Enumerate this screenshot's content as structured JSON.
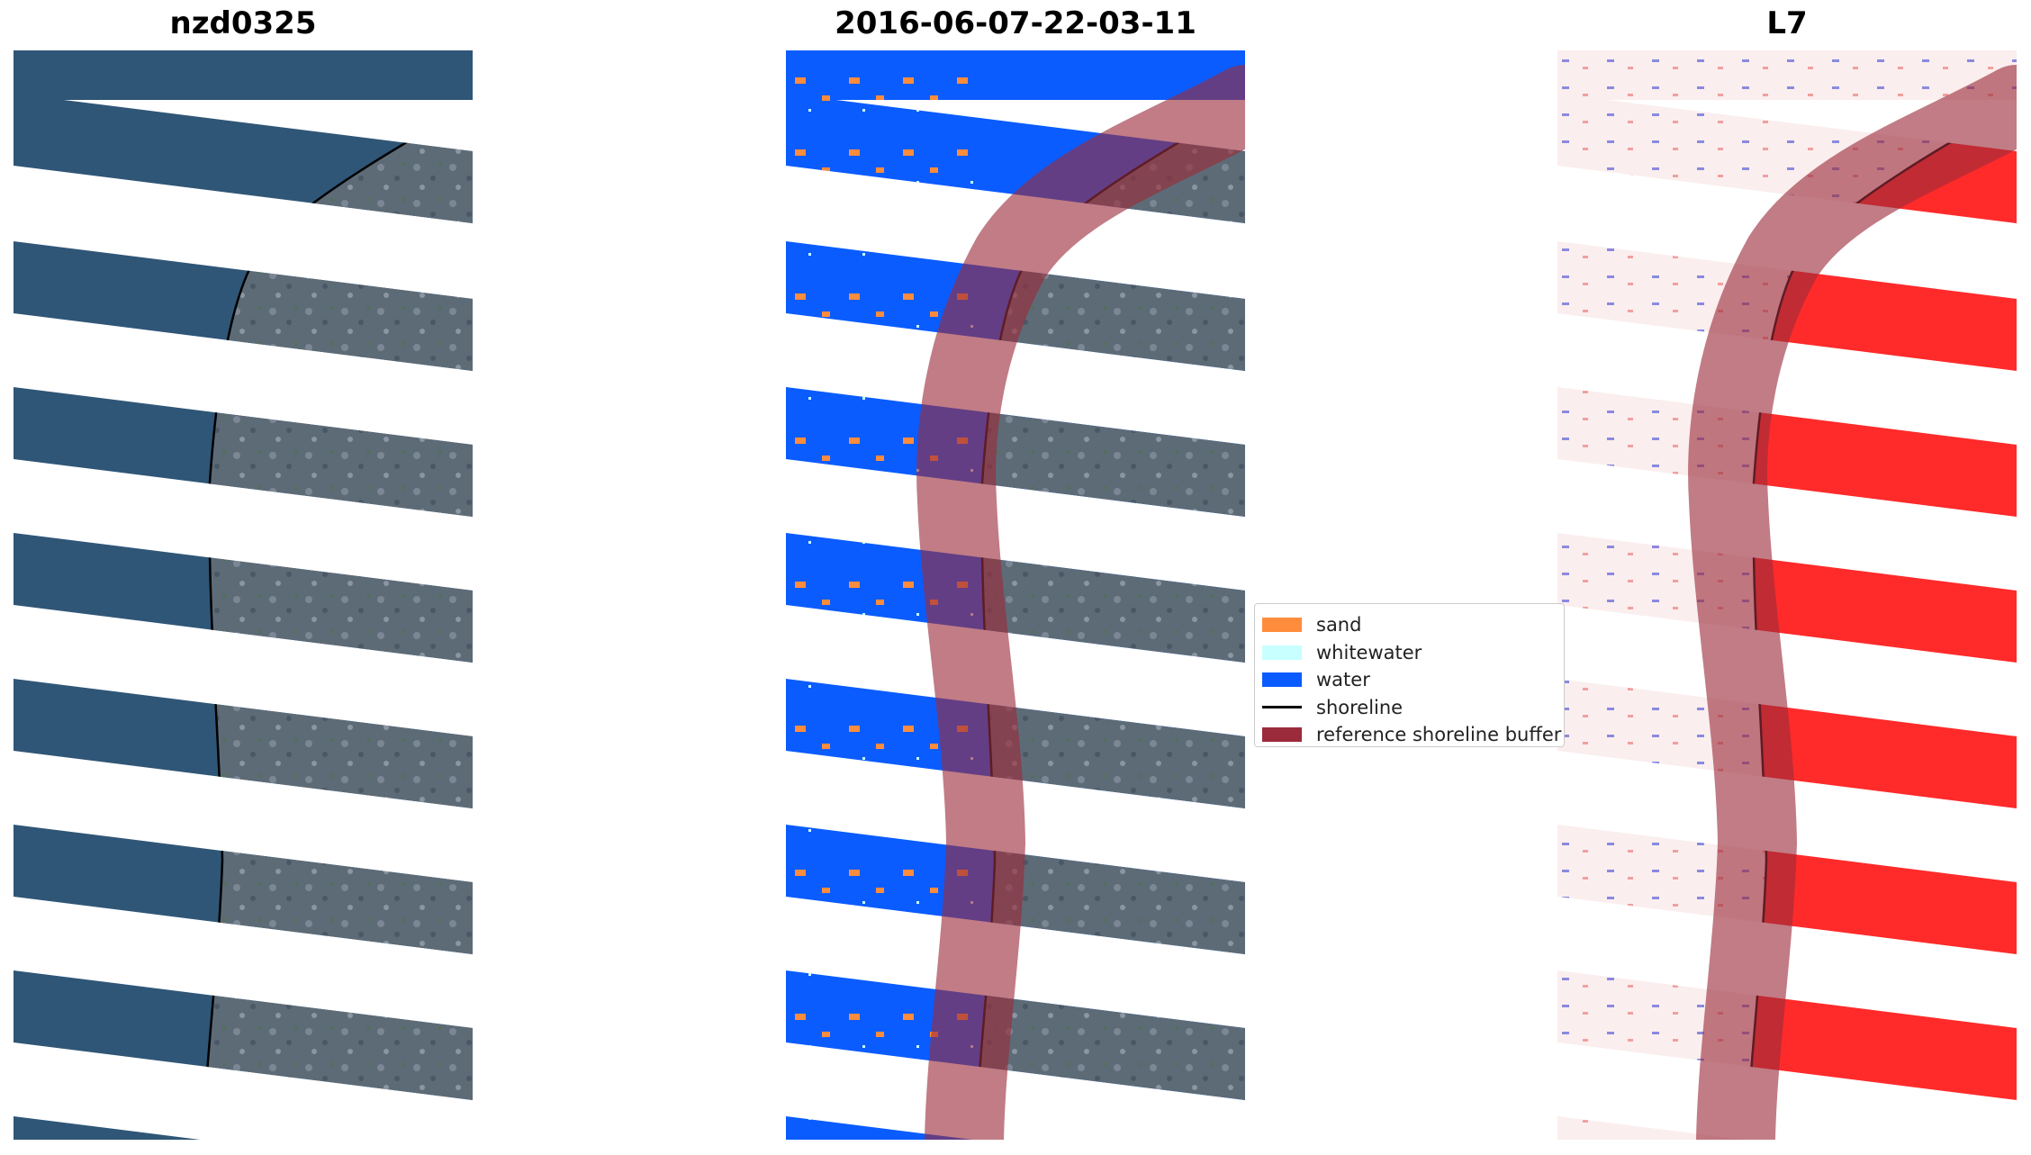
{
  "panels": {
    "rgb": {
      "title": "nzd0325"
    },
    "classified": {
      "title": "2016-06-07-22-03-11"
    },
    "index": {
      "title": "L7"
    }
  },
  "colors": {
    "sand": "#ff8c3c",
    "whitewater": "#c8ffff",
    "water": "#0a5cff",
    "shoreline": "#000000",
    "buffer": "#9b2b3a",
    "sea_rgb": "#2f5677",
    "land_rgb": "#5a6a78",
    "index_land": "#ff2020"
  },
  "legend": {
    "items": [
      {
        "label": "sand",
        "kind": "patch",
        "color": "#ff8c3c"
      },
      {
        "label": "whitewater",
        "kind": "patch",
        "color": "#c8ffff"
      },
      {
        "label": "water",
        "kind": "patch",
        "color": "#0a5cff"
      },
      {
        "label": "shoreline",
        "kind": "line",
        "color": "#000000"
      },
      {
        "label": "reference shoreline buffer",
        "kind": "patch",
        "color": "#9b2b3a"
      }
    ]
  }
}
